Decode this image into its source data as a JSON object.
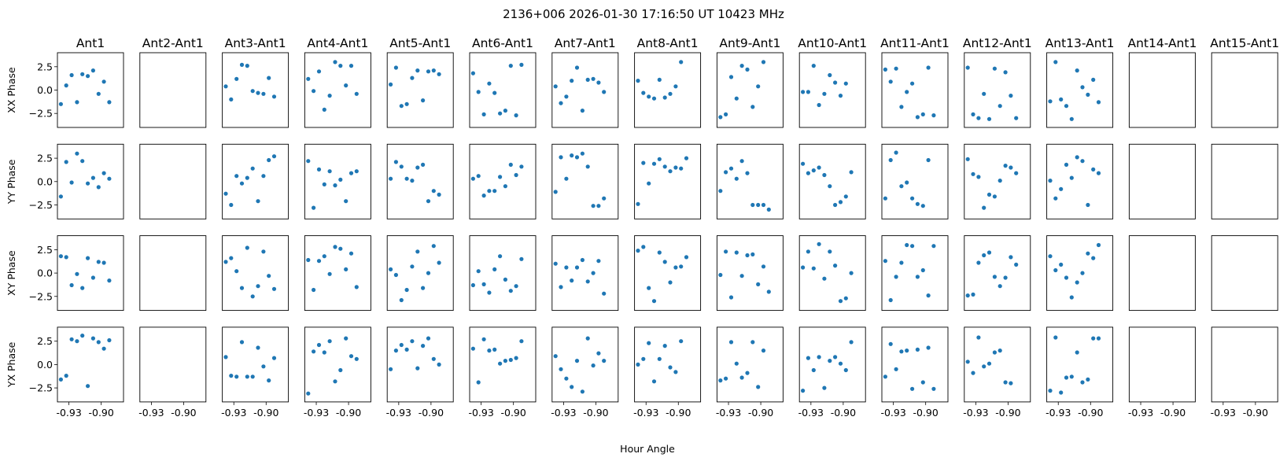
{
  "chart_data": {
    "type": "scatter",
    "title": "2136+006  2026-01-30 17:16:50 UT  10423 MHz",
    "xlabel": "Hour Angle",
    "columns": [
      "Ant1",
      "Ant2-Ant1",
      "Ant3-Ant1",
      "Ant4-Ant1",
      "Ant5-Ant1",
      "Ant6-Ant1",
      "Ant7-Ant1",
      "Ant8-Ant1",
      "Ant9-Ant1",
      "Ant10-Ant1",
      "Ant11-Ant1",
      "Ant12-Ant1",
      "Ant13-Ant1",
      "Ant14-Ant1",
      "Ant15-Ant1"
    ],
    "rows": [
      "XX Phase",
      "YY Phase",
      "XY Phase",
      "YX Phase"
    ],
    "xlim": [
      -0.9407,
      -0.8793
    ],
    "ylim": [
      -4.0,
      4.0
    ],
    "x_ticks": [
      -0.93,
      -0.9
    ],
    "x_tick_labels": [
      "-0.93",
      "-0.90"
    ],
    "y_ticks": [
      2.5,
      0.0,
      -2.5
    ],
    "y_tick_labels": [
      "2.5",
      "0.0",
      "−2.5"
    ],
    "x": [
      -0.9375,
      -0.9325,
      -0.9275,
      -0.9225,
      -0.9175,
      -0.9125,
      -0.9075,
      -0.9025,
      -0.8975,
      -0.8925,
      -0.8875,
      -0.8825
    ],
    "marker_color": "#1f77b4",
    "panels": [
      [
        [
          -1.5,
          0.5,
          1.6,
          -1.3,
          1.7,
          1.5,
          2.1,
          -0.4,
          0.9,
          -1.3
        ],
        [],
        [
          0.4,
          -1.0,
          1.2,
          2.7,
          2.6,
          -0.1,
          -0.3,
          -0.4,
          1.3,
          -0.7
        ],
        [
          1.2,
          -0.1,
          2.0,
          -2.1,
          -0.6,
          3.0,
          2.6,
          0.5,
          2.6,
          -0.4
        ],
        [
          0.6,
          2.4,
          -1.7,
          -1.5,
          1.3,
          2.1,
          -1.1,
          2.0,
          2.1,
          1.7
        ],
        [
          1.8,
          -0.2,
          -2.6,
          0.7,
          -0.3,
          -2.5,
          -2.2,
          2.6,
          -2.7,
          2.7
        ],
        [
          0.4,
          -1.4,
          -0.7,
          1.0,
          2.4,
          -2.2,
          1.1,
          1.2,
          0.8,
          -0.2
        ],
        [
          1.0,
          -0.3,
          -0.7,
          -0.9,
          1.1,
          -0.8,
          -0.4,
          0.4,
          3.0
        ],
        [
          -2.9,
          -2.6,
          1.4,
          -0.9,
          2.6,
          2.2,
          -1.8,
          0.4,
          3.0
        ],
        [
          -0.2,
          -0.2,
          2.6,
          -1.6,
          -0.4,
          1.6,
          0.8,
          -0.6,
          0.7
        ],
        [
          2.2,
          0.9,
          2.3,
          -1.8,
          -0.2,
          0.7,
          -2.9,
          -2.6,
          2.4,
          -2.7
        ],
        [
          2.4,
          -2.6,
          -3.0,
          -0.4,
          -3.1,
          2.3,
          -1.7,
          1.9,
          -0.6,
          -3.0
        ],
        [
          -1.2,
          3.0,
          -1.0,
          -1.7,
          -3.1,
          2.1,
          0.3,
          -0.5,
          1.1,
          -1.3
        ],
        [],
        []
      ],
      [
        [
          -1.6,
          2.1,
          -0.1,
          3.0,
          2.2,
          -0.2,
          0.4,
          -0.6,
          0.9,
          0.3
        ],
        [],
        [
          -1.3,
          -2.5,
          0.6,
          -0.2,
          0.4,
          1.4,
          -2.1,
          0.6,
          2.3,
          2.7
        ],
        [
          2.2,
          -2.8,
          1.3,
          -0.3,
          1.1,
          -0.4,
          0.2,
          -2.1,
          0.9,
          1.1
        ],
        [
          0.3,
          2.1,
          1.6,
          0.3,
          0.1,
          1.5,
          1.8,
          -2.1,
          -1.0,
          -1.4
        ],
        [
          0.3,
          0.6,
          -1.5,
          -1.0,
          -1.0,
          0.5,
          -0.5,
          1.8,
          0.7,
          1.6
        ],
        [
          -1.1,
          2.6,
          0.3,
          2.8,
          2.6,
          3.0,
          1.6,
          -2.6,
          -2.6,
          -1.8
        ],
        [
          -2.4,
          2.0,
          -0.2,
          1.9,
          2.4,
          1.6,
          1.1,
          1.5,
          1.4,
          2.5
        ],
        [
          -1.0,
          1.0,
          1.4,
          0.3,
          2.2,
          0.9,
          -2.5,
          -2.5,
          -2.5,
          -3.0
        ],
        [
          1.9,
          0.9,
          1.2,
          1.5,
          0.7,
          -0.5,
          -2.5,
          -2.2,
          -1.6,
          1.0
        ],
        [
          -1.8,
          2.3,
          3.1,
          -0.5,
          -0.1,
          -1.8,
          -2.4,
          -2.6,
          2.3
        ],
        [
          2.4,
          0.8,
          0.5,
          -2.8,
          -1.4,
          -1.6,
          0.1,
          1.7,
          1.5,
          0.9
        ],
        [
          0.1,
          -1.8,
          -0.8,
          1.8,
          0.4,
          2.6,
          2.2,
          -2.5,
          1.3,
          0.9
        ],
        [],
        []
      ],
      [
        [
          1.8,
          1.7,
          -1.3,
          -0.1,
          -1.6,
          1.6,
          -0.5,
          1.2,
          1.1,
          -0.8
        ],
        [],
        [
          1.2,
          1.6,
          0.2,
          -1.6,
          2.7,
          -2.5,
          -1.4,
          2.3,
          -0.3,
          -1.7
        ],
        [
          1.4,
          -1.8,
          1.3,
          1.8,
          -0.1,
          2.8,
          2.6,
          0.4,
          2.1,
          -1.5
        ],
        [
          0.4,
          -0.2,
          -2.9,
          -1.8,
          0.7,
          2.3,
          -1.6,
          0.0,
          2.9,
          1.1
        ],
        [
          -1.3,
          0.2,
          -1.2,
          -2.1,
          0.4,
          1.8,
          -0.7,
          -1.9,
          -1.4,
          1.5
        ],
        [
          1.0,
          -1.5,
          0.6,
          -0.8,
          0.6,
          1.4,
          -0.9,
          0.0,
          1.3,
          -2.2
        ],
        [
          2.4,
          2.8,
          -1.6,
          -3.0,
          2.2,
          1.2,
          -1.0,
          0.6,
          0.7,
          1.7
        ],
        [
          -0.2,
          2.3,
          -2.6,
          2.2,
          -0.3,
          1.9,
          2.0,
          -1.2,
          0.7,
          -2.0
        ],
        [
          0.6,
          2.3,
          0.5,
          3.1,
          -0.6,
          2.3,
          0.8,
          -3.0,
          -2.7,
          0.0
        ],
        [
          1.3,
          -2.9,
          -0.4,
          1.1,
          3.0,
          2.9,
          -0.4,
          0.3,
          -2.4,
          2.9
        ],
        [
          -2.4,
          -2.3,
          1.1,
          1.9,
          2.2,
          -0.4,
          -1.4,
          -0.5,
          1.7,
          0.9
        ],
        [
          1.8,
          0.3,
          0.9,
          -0.5,
          -2.6,
          -1.0,
          0.0,
          2.1,
          1.6,
          3.0
        ],
        [],
        []
      ],
      [
        [
          -1.6,
          -1.2,
          2.7,
          2.5,
          3.1,
          -2.3,
          2.8,
          2.4,
          1.7,
          2.6
        ],
        [],
        [
          0.8,
          -1.2,
          -1.3,
          2.4,
          -1.3,
          -1.3,
          1.8,
          -0.2,
          -1.7,
          0.7
        ],
        [
          -3.1,
          1.4,
          2.1,
          1.3,
          2.5,
          -1.8,
          -0.6,
          2.8,
          0.9,
          0.6
        ],
        [
          -0.5,
          1.5,
          2.1,
          1.6,
          2.5,
          -0.4,
          2.0,
          2.8,
          0.6,
          0.0
        ],
        [
          1.7,
          -1.9,
          2.7,
          1.5,
          1.6,
          0.1,
          0.4,
          0.5,
          0.7,
          2.5
        ],
        [
          0.9,
          -0.5,
          -1.5,
          -2.4,
          0.4,
          -2.9,
          2.8,
          -0.1,
          1.2,
          0.4
        ],
        [
          0.0,
          0.6,
          2.3,
          -1.8,
          0.6,
          2.0,
          -0.3,
          -0.8,
          2.5
        ],
        [
          -1.7,
          -1.5,
          2.4,
          0.1,
          -1.4,
          -0.9,
          2.4,
          -2.4,
          1.5
        ],
        [
          -2.8,
          0.7,
          -0.6,
          0.8,
          -2.5,
          0.4,
          0.8,
          0.1,
          -0.6,
          2.4
        ],
        [
          -1.3,
          2.2,
          -0.5,
          1.4,
          1.5,
          -2.6,
          1.6,
          -1.9,
          1.8,
          -2.6
        ],
        [
          0.3,
          -0.9,
          2.9,
          -0.2,
          0.1,
          1.3,
          1.5,
          -1.9,
          -2.0
        ],
        [
          -2.8,
          2.9,
          -3.0,
          -1.4,
          -1.3,
          1.3,
          -1.9,
          -1.6,
          2.8,
          2.8
        ],
        [],
        []
      ]
    ]
  }
}
